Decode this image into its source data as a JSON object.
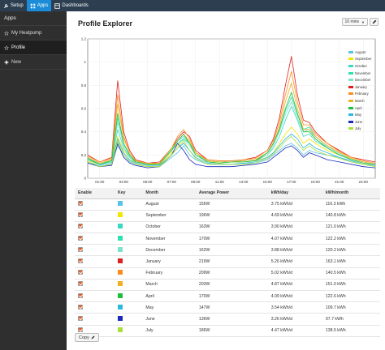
{
  "topnav": [
    {
      "label": "Setup",
      "icon": "wrench-icon",
      "active": false
    },
    {
      "label": "Apps",
      "icon": "apps-icon",
      "active": true
    },
    {
      "label": "Dashboards",
      "icon": "dashboard-icon",
      "active": false
    }
  ],
  "sidebar": {
    "title": "Apps",
    "items": [
      {
        "label": "My Heatpump",
        "icon": "star-icon",
        "active": false
      },
      {
        "label": "Profile",
        "icon": "star-icon",
        "active": true
      },
      {
        "label": "New",
        "icon": "plus-icon",
        "active": false
      }
    ]
  },
  "page": {
    "title": "Profile Explorer"
  },
  "controls": {
    "interval": "10 mins",
    "tool_icon": "pencil-icon"
  },
  "colors": {
    "topbar": "#2c3e50",
    "topnav_active": "#1a8cd8",
    "sidebar": "#2f2f2f",
    "checkbox": "#e9571f"
  },
  "chart_data": {
    "type": "line",
    "ylim": [
      0,
      1.2
    ],
    "yticks": [
      "0",
      "0.2",
      "0.4",
      "0.6",
      "0.8",
      "1",
      "1.2"
    ],
    "xticks": [
      "01:00",
      "03:00",
      "05:00",
      "07:00",
      "09:00",
      "11:00",
      "13:00",
      "15:00",
      "17:00",
      "19:00",
      "21:00",
      "23:00"
    ],
    "x_hours": [
      0,
      1,
      2,
      2.5,
      3,
      3.5,
      4,
      5,
      6,
      7,
      7.5,
      8,
      8.5,
      9,
      10,
      11,
      12,
      13,
      14,
      15,
      15.5,
      16,
      16.5,
      17,
      17.5,
      18,
      18.5,
      19,
      20,
      21,
      22,
      23,
      24
    ],
    "legend_placement": "top-right",
    "series": [
      {
        "name": "August",
        "color": "#56c4e8",
        "values": [
          0.14,
          0.1,
          0.12,
          0.28,
          0.2,
          0.14,
          0.12,
          0.1,
          0.1,
          0.18,
          0.22,
          0.28,
          0.2,
          0.16,
          0.12,
          0.12,
          0.12,
          0.13,
          0.13,
          0.16,
          0.2,
          0.24,
          0.28,
          0.3,
          0.26,
          0.2,
          0.24,
          0.22,
          0.2,
          0.18,
          0.14,
          0.12,
          0.1
        ]
      },
      {
        "name": "September",
        "color": "#f2e600",
        "values": [
          0.15,
          0.12,
          0.14,
          0.36,
          0.24,
          0.18,
          0.13,
          0.11,
          0.11,
          0.22,
          0.28,
          0.34,
          0.3,
          0.2,
          0.15,
          0.13,
          0.14,
          0.14,
          0.15,
          0.18,
          0.22,
          0.3,
          0.38,
          0.44,
          0.38,
          0.3,
          0.34,
          0.3,
          0.24,
          0.2,
          0.17,
          0.14,
          0.12
        ]
      },
      {
        "name": "October",
        "color": "#3ad8c4",
        "values": [
          0.16,
          0.12,
          0.14,
          0.42,
          0.26,
          0.18,
          0.14,
          0.12,
          0.12,
          0.26,
          0.32,
          0.36,
          0.3,
          0.22,
          0.14,
          0.13,
          0.14,
          0.14,
          0.15,
          0.2,
          0.26,
          0.36,
          0.5,
          0.62,
          0.5,
          0.36,
          0.38,
          0.32,
          0.26,
          0.2,
          0.16,
          0.14,
          0.12
        ]
      },
      {
        "name": "November",
        "color": "#2fe0b0",
        "values": [
          0.18,
          0.12,
          0.16,
          0.52,
          0.3,
          0.2,
          0.14,
          0.12,
          0.13,
          0.24,
          0.3,
          0.34,
          0.3,
          0.22,
          0.15,
          0.14,
          0.14,
          0.15,
          0.16,
          0.22,
          0.3,
          0.42,
          0.58,
          0.7,
          0.55,
          0.42,
          0.44,
          0.36,
          0.28,
          0.22,
          0.17,
          0.14,
          0.12
        ]
      },
      {
        "name": "December",
        "color": "#7ee2c8",
        "values": [
          0.17,
          0.13,
          0.15,
          0.48,
          0.28,
          0.19,
          0.15,
          0.12,
          0.12,
          0.25,
          0.3,
          0.33,
          0.28,
          0.2,
          0.15,
          0.14,
          0.15,
          0.15,
          0.16,
          0.2,
          0.28,
          0.4,
          0.55,
          0.66,
          0.52,
          0.4,
          0.42,
          0.34,
          0.27,
          0.21,
          0.16,
          0.14,
          0.12
        ]
      },
      {
        "name": "January",
        "color": "#e02020",
        "values": [
          0.2,
          0.14,
          0.18,
          0.84,
          0.4,
          0.24,
          0.16,
          0.13,
          0.14,
          0.26,
          0.34,
          0.4,
          0.36,
          0.24,
          0.16,
          0.15,
          0.15,
          0.16,
          0.18,
          0.24,
          0.34,
          0.52,
          0.8,
          1.05,
          0.72,
          0.5,
          0.48,
          0.4,
          0.3,
          0.24,
          0.18,
          0.16,
          0.14
        ]
      },
      {
        "name": "February",
        "color": "#ff8c1a",
        "values": [
          0.19,
          0.14,
          0.17,
          0.72,
          0.36,
          0.22,
          0.15,
          0.13,
          0.13,
          0.26,
          0.36,
          0.42,
          0.34,
          0.22,
          0.16,
          0.15,
          0.15,
          0.16,
          0.17,
          0.24,
          0.32,
          0.48,
          0.72,
          0.92,
          0.66,
          0.46,
          0.46,
          0.38,
          0.3,
          0.23,
          0.18,
          0.15,
          0.13
        ]
      },
      {
        "name": "March",
        "color": "#f0b020",
        "values": [
          0.18,
          0.13,
          0.16,
          0.64,
          0.34,
          0.22,
          0.15,
          0.12,
          0.13,
          0.26,
          0.32,
          0.38,
          0.32,
          0.22,
          0.15,
          0.14,
          0.14,
          0.15,
          0.16,
          0.22,
          0.3,
          0.44,
          0.66,
          0.82,
          0.6,
          0.42,
          0.42,
          0.36,
          0.28,
          0.22,
          0.17,
          0.14,
          0.12
        ]
      },
      {
        "name": "April",
        "color": "#1fbf3a",
        "values": [
          0.17,
          0.12,
          0.15,
          0.56,
          0.3,
          0.2,
          0.14,
          0.12,
          0.12,
          0.24,
          0.32,
          0.38,
          0.3,
          0.2,
          0.14,
          0.13,
          0.14,
          0.14,
          0.15,
          0.22,
          0.3,
          0.42,
          0.6,
          0.74,
          0.56,
          0.4,
          0.4,
          0.34,
          0.26,
          0.2,
          0.16,
          0.13,
          0.12
        ]
      },
      {
        "name": "May",
        "color": "#2eb8e0",
        "values": [
          0.14,
          0.11,
          0.13,
          0.34,
          0.22,
          0.16,
          0.13,
          0.11,
          0.11,
          0.2,
          0.26,
          0.3,
          0.24,
          0.18,
          0.13,
          0.12,
          0.12,
          0.13,
          0.14,
          0.18,
          0.22,
          0.28,
          0.34,
          0.38,
          0.34,
          0.26,
          0.3,
          0.26,
          0.22,
          0.18,
          0.15,
          0.12,
          0.11
        ]
      },
      {
        "name": "June",
        "color": "#1a2ab8",
        "values": [
          0.13,
          0.1,
          0.11,
          0.3,
          0.18,
          0.13,
          0.11,
          0.09,
          0.1,
          0.2,
          0.3,
          0.24,
          0.16,
          0.12,
          0.1,
          0.1,
          0.1,
          0.11,
          0.12,
          0.14,
          0.18,
          0.22,
          0.26,
          0.28,
          0.24,
          0.18,
          0.22,
          0.2,
          0.16,
          0.14,
          0.12,
          0.1,
          0.09
        ]
      },
      {
        "name": "July",
        "color": "#a8e03a",
        "values": [
          0.14,
          0.1,
          0.12,
          0.32,
          0.2,
          0.15,
          0.12,
          0.1,
          0.1,
          0.2,
          0.26,
          0.32,
          0.24,
          0.17,
          0.12,
          0.12,
          0.12,
          0.12,
          0.13,
          0.17,
          0.21,
          0.26,
          0.32,
          0.36,
          0.3,
          0.24,
          0.28,
          0.24,
          0.2,
          0.17,
          0.14,
          0.12,
          0.1
        ]
      }
    ]
  },
  "table": {
    "headers": [
      "Enable",
      "Key",
      "Month",
      "Average Power",
      "kWh/day",
      "kWh/month"
    ],
    "rows": [
      {
        "month": "August",
        "power": "156W",
        "day": "3.75 kWh/d",
        "monthv": "116.3 kWh",
        "color": "#56c4e8"
      },
      {
        "month": "September",
        "power": "196W",
        "day": "4.69 kWh/d",
        "monthv": "140.8 kWh",
        "color": "#f2e600"
      },
      {
        "month": "October",
        "power": "163W",
        "day": "3.90 kWh/d",
        "monthv": "121.0 kWh",
        "color": "#3ad8c4"
      },
      {
        "month": "November",
        "power": "170W",
        "day": "4.07 kWh/d",
        "monthv": "122.2 kWh",
        "color": "#2fe0b0"
      },
      {
        "month": "December",
        "power": "162W",
        "day": "3.88 kWh/d",
        "monthv": "120.2 kWh",
        "color": "#7ee2c8"
      },
      {
        "month": "January",
        "power": "219W",
        "day": "5.26 kWh/d",
        "monthv": "163.1 kWh",
        "color": "#e02020"
      },
      {
        "month": "February",
        "power": "209W",
        "day": "5.02 kWh/d",
        "monthv": "140.5 kWh",
        "color": "#ff8c1a"
      },
      {
        "month": "March",
        "power": "203W",
        "day": "4.87 kWh/d",
        "monthv": "151.0 kWh",
        "color": "#f0b020"
      },
      {
        "month": "April",
        "power": "170W",
        "day": "4.09 kWh/d",
        "monthv": "122.6 kWh",
        "color": "#1fbf3a"
      },
      {
        "month": "May",
        "power": "147W",
        "day": "3.54 kWh/d",
        "monthv": "109.7 kWh",
        "color": "#2eb8e0"
      },
      {
        "month": "June",
        "power": "136W",
        "day": "3.26 kWh/d",
        "monthv": "97.7 kWh",
        "color": "#1a2ab8"
      },
      {
        "month": "July",
        "power": "186W",
        "day": "4.47 kWh/d",
        "monthv": "138.5 kWh",
        "color": "#a8e03a"
      }
    ]
  },
  "copy_button": {
    "label": "Copy"
  }
}
